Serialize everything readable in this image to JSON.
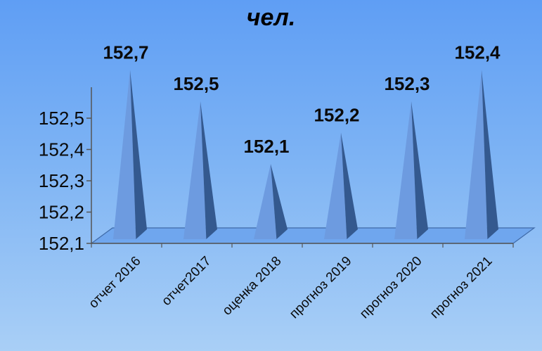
{
  "title": "чел.",
  "chart_data": {
    "type": "bar",
    "style": "3d-pyramid",
    "title": "чел.",
    "categories": [
      "отчет 2016",
      "отчет2017",
      "оценка 2018",
      "прогноз 2019",
      "прогноз 2020",
      "прогноз 2021"
    ],
    "values": [
      152.7,
      152.5,
      152.1,
      152.2,
      152.3,
      152.4
    ],
    "value_labels": [
      "152,7",
      "152,5",
      "152,1",
      "152,2",
      "152,3",
      "152,4"
    ],
    "peak_levels": [
      152.6,
      152.5,
      152.3,
      152.4,
      152.5,
      152.6
    ],
    "y_ticks": [
      "152,1",
      "152,2",
      "152,3",
      "152,4",
      "152,5"
    ],
    "y_tick_values": [
      152.1,
      152.2,
      152.3,
      152.4,
      152.5
    ],
    "ylim": [
      152.1,
      152.5
    ],
    "grid": false,
    "legend": "none",
    "colors": {
      "pyramid_light": "#6d9be0",
      "pyramid_dark": "#34598f",
      "floor": "#6fa6ee",
      "floor_edge": "#3f6aa8"
    }
  }
}
